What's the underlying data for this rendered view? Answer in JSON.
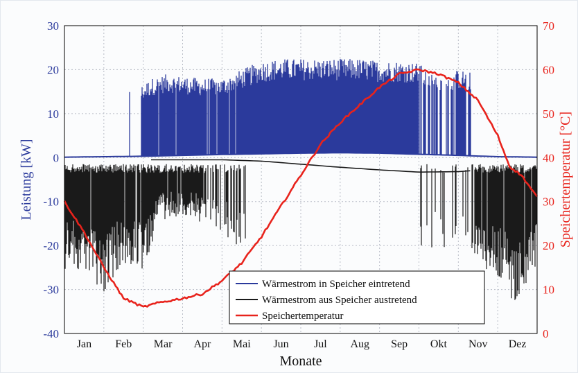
{
  "chart_data": {
    "type": "line",
    "xlabel": "Monate",
    "ylabel_left": "Leistung [kW]",
    "ylabel_right": "Speichertemperatur [°C]",
    "ylim_left": [
      -40,
      30
    ],
    "ylim_right": [
      0,
      70
    ],
    "yticks_left": [
      "30",
      "20",
      "10",
      "0",
      "-10",
      "-20",
      "-30",
      "-40"
    ],
    "yticks_right": [
      "70",
      "60",
      "50",
      "40",
      "30",
      "20",
      "10",
      "0"
    ],
    "months": [
      "Jan",
      "Feb",
      "Mar",
      "Apr",
      "Mai",
      "Jun",
      "Jul",
      "Aug",
      "Sep",
      "Okt",
      "Nov",
      "Dez"
    ],
    "grid": true,
    "legend_position": "bottom-center",
    "colors": {
      "blue": "#2b3a9c",
      "black": "#1a1a1a",
      "red": "#e8231c",
      "left_axis": "#2b3a9c",
      "right_axis": "#e8231c"
    },
    "series": [
      {
        "name": "Wärmestrom in Speicher eintretend",
        "axis": "left",
        "description_peak_envelope_kW": {
          "x_month": [
            1.55,
            1.9,
            2.2,
            2.6,
            3.0,
            3.5,
            4.0,
            4.5,
            5.0,
            5.5,
            6.0,
            6.5,
            7.0,
            7.5,
            8.0,
            8.5,
            9.0,
            9.3,
            9.6,
            10.0,
            10.3
          ],
          "y": [
            15,
            16,
            18,
            19,
            18.5,
            18,
            18,
            20,
            22,
            22.5,
            22.5,
            22.5,
            22.5,
            22.5,
            22,
            22,
            21.5,
            19,
            19,
            20,
            19.5
          ]
        },
        "baseline_kW": {
          "x_month": [
            0,
            2,
            4,
            6,
            7,
            8,
            10,
            11,
            12
          ],
          "y": [
            0.1,
            0.3,
            0.7,
            1.0,
            1.1,
            1.0,
            0.5,
            0.2,
            0.1
          ]
        }
      },
      {
        "name": "Wärmestrom aus Speicher austretend",
        "axis": "left",
        "baseline_kW": {
          "x_month": [
            2.2,
            3,
            4,
            5,
            6,
            7,
            8,
            9,
            10,
            10.3
          ],
          "y": [
            -0.5,
            -0.5,
            -0.5,
            -0.8,
            -1.5,
            -2.2,
            -2.8,
            -3.3,
            -3.2,
            -3.0
          ]
        },
        "trough_envelope_kW": {
          "x_month": [
            0,
            0.5,
            1.0,
            1.5,
            2.0,
            2.4,
            3.0,
            3.5,
            4.0,
            4.3,
            4.6,
            10.5,
            11.0,
            11.5,
            12.0
          ],
          "y": [
            -26,
            -26,
            -31,
            -24,
            -27,
            -14,
            -14,
            -15,
            -17,
            -20,
            -20,
            -25,
            -28,
            -34,
            -25
          ]
        }
      },
      {
        "name": "Speichertemperatur",
        "axis": "right",
        "x_month": [
          0,
          0.5,
          1.0,
          1.5,
          2.0,
          2.4,
          3.0,
          3.5,
          4.0,
          4.5,
          5.0,
          5.5,
          6.0,
          6.5,
          7.0,
          7.5,
          8.0,
          8.5,
          9.0,
          9.5,
          10.0,
          10.5,
          11.0,
          11.3,
          11.6,
          12.0
        ],
        "y": [
          30,
          23,
          15,
          8,
          6,
          7,
          8,
          9,
          12,
          16,
          22,
          29,
          36,
          43,
          48,
          52,
          56,
          59,
          60,
          59,
          57,
          53,
          45,
          38,
          36,
          31
        ]
      }
    ]
  }
}
